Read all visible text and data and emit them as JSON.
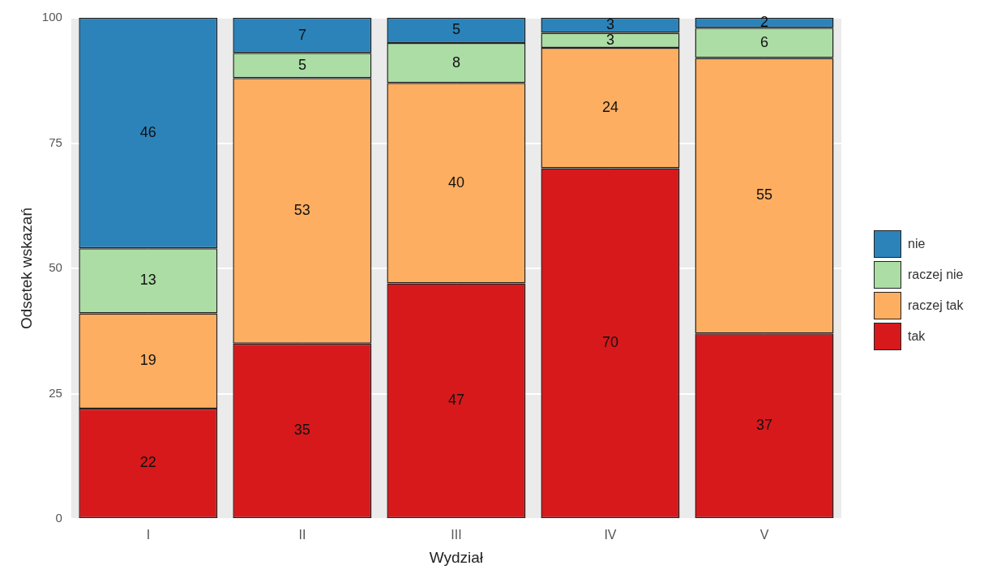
{
  "chart_data": {
    "type": "bar",
    "stacked": true,
    "xlabel": "Wydział",
    "ylabel": "Odsetek wskazań",
    "categories": [
      "I",
      "II",
      "III",
      "IV",
      "V"
    ],
    "series": [
      {
        "name": "tak",
        "color": "#d7191c",
        "values": [
          22,
          35,
          47,
          70,
          37
        ]
      },
      {
        "name": "raczej tak",
        "color": "#fdae61",
        "values": [
          19,
          53,
          40,
          24,
          55
        ]
      },
      {
        "name": "raczej nie",
        "color": "#abdda4",
        "values": [
          13,
          5,
          8,
          3,
          6
        ]
      },
      {
        "name": "nie",
        "color": "#2b83ba",
        "values": [
          46,
          7,
          5,
          3,
          2
        ]
      }
    ],
    "ylim": [
      0,
      100
    ],
    "yticks": [
      0,
      25,
      50,
      75,
      100
    ],
    "grid": true,
    "legend": "right",
    "data_labels": true
  }
}
